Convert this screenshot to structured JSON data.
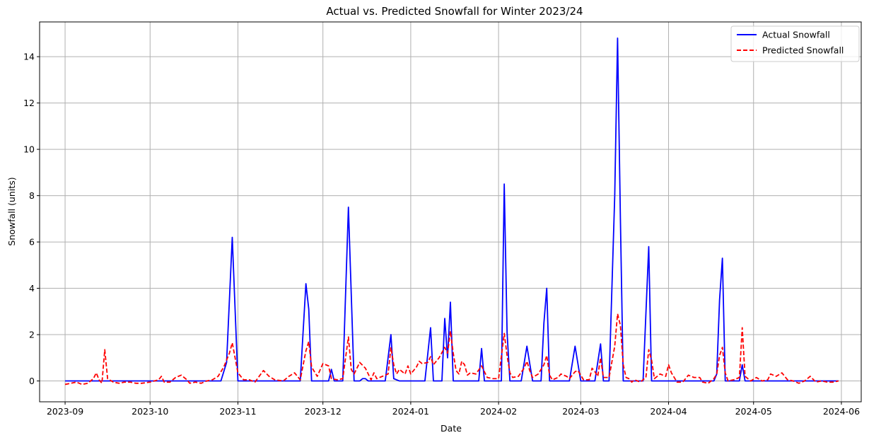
{
  "chart_data": {
    "type": "line",
    "title": "Actual vs. Predicted Snowfall for Winter 2023/24",
    "xlabel": "Date",
    "ylabel": "Snowfall (units)",
    "xlim": [
      "2023-08-23",
      "2024-06-08"
    ],
    "ylim": [
      -0.9,
      15.5
    ],
    "grid": true,
    "legend_position": "top-right",
    "x_ticks": [
      "2023-09",
      "2023-10",
      "2023-11",
      "2023-12",
      "2024-01",
      "2024-02",
      "2024-03",
      "2024-04",
      "2024-05",
      "2024-06"
    ],
    "y_ticks": [
      0,
      2,
      4,
      6,
      8,
      10,
      12,
      14
    ],
    "series": [
      {
        "name": "Actual Snowfall",
        "color": "#0000ff",
        "style": "solid",
        "points": [
          [
            "2023-09-01",
            0
          ],
          [
            "2023-10-26",
            0
          ],
          [
            "2023-10-28",
            0.8
          ],
          [
            "2023-10-30",
            6.2
          ],
          [
            "2023-11-01",
            0
          ],
          [
            "2023-11-23",
            0
          ],
          [
            "2023-11-25",
            4.2
          ],
          [
            "2023-11-26",
            3.1
          ],
          [
            "2023-11-27",
            0
          ],
          [
            "2023-12-03",
            0
          ],
          [
            "2023-12-04",
            0.5
          ],
          [
            "2023-12-05",
            0
          ],
          [
            "2023-12-08",
            0
          ],
          [
            "2023-12-10",
            7.5
          ],
          [
            "2023-12-12",
            0
          ],
          [
            "2023-12-14",
            0
          ],
          [
            "2023-12-15",
            0.1
          ],
          [
            "2023-12-16",
            0.1
          ],
          [
            "2023-12-17",
            0
          ],
          [
            "2023-12-23",
            0
          ],
          [
            "2023-12-25",
            2.0
          ],
          [
            "2023-12-26",
            0.1
          ],
          [
            "2023-12-28",
            0
          ],
          [
            "2024-01-06",
            0
          ],
          [
            "2024-01-08",
            2.3
          ],
          [
            "2024-01-09",
            0
          ],
          [
            "2024-01-12",
            0
          ],
          [
            "2024-01-13",
            2.7
          ],
          [
            "2024-01-14",
            1.0
          ],
          [
            "2024-01-15",
            3.4
          ],
          [
            "2024-01-16",
            0
          ],
          [
            "2024-01-25",
            0
          ],
          [
            "2024-01-26",
            1.4
          ],
          [
            "2024-01-27",
            0
          ],
          [
            "2024-02-02",
            0
          ],
          [
            "2024-02-03",
            8.5
          ],
          [
            "2024-02-04",
            2.1
          ],
          [
            "2024-02-05",
            0
          ],
          [
            "2024-02-09",
            0
          ],
          [
            "2024-02-11",
            1.5
          ],
          [
            "2024-02-13",
            0
          ],
          [
            "2024-02-16",
            0
          ],
          [
            "2024-02-17",
            2.5
          ],
          [
            "2024-02-18",
            4.0
          ],
          [
            "2024-02-19",
            0
          ],
          [
            "2024-02-26",
            0
          ],
          [
            "2024-02-28",
            1.5
          ],
          [
            "2024-03-01",
            0
          ],
          [
            "2024-03-06",
            0
          ],
          [
            "2024-03-08",
            1.6
          ],
          [
            "2024-03-09",
            0
          ],
          [
            "2024-03-11",
            0
          ],
          [
            "2024-03-13",
            8.0
          ],
          [
            "2024-03-14",
            14.8
          ],
          [
            "2024-03-15",
            7.0
          ],
          [
            "2024-03-16",
            0
          ],
          [
            "2024-03-23",
            0
          ],
          [
            "2024-03-25",
            5.8
          ],
          [
            "2024-03-26",
            0
          ],
          [
            "2024-04-17",
            0
          ],
          [
            "2024-04-18",
            0.3
          ],
          [
            "2024-04-19",
            3.5
          ],
          [
            "2024-04-20",
            5.3
          ],
          [
            "2024-04-21",
            0
          ],
          [
            "2024-04-26",
            0
          ],
          [
            "2024-04-27",
            0.7
          ],
          [
            "2024-04-28",
            0
          ],
          [
            "2024-05-31",
            0
          ]
        ]
      },
      {
        "name": "Predicted Snowfall",
        "color": "#ff0000",
        "style": "dashed",
        "points": [
          [
            "2023-09-01",
            -0.15
          ],
          [
            "2023-09-03",
            -0.1
          ],
          [
            "2023-09-05",
            -0.05
          ],
          [
            "2023-09-07",
            -0.15
          ],
          [
            "2023-09-09",
            -0.1
          ],
          [
            "2023-09-11",
            0.1
          ],
          [
            "2023-09-12",
            0.35
          ],
          [
            "2023-09-13",
            0.05
          ],
          [
            "2023-09-14",
            -0.1
          ],
          [
            "2023-09-15",
            1.35
          ],
          [
            "2023-09-16",
            0.1
          ],
          [
            "2023-09-18",
            -0.05
          ],
          [
            "2023-09-20",
            -0.1
          ],
          [
            "2023-09-22",
            -0.05
          ],
          [
            "2023-09-24",
            -0.05
          ],
          [
            "2023-09-26",
            -0.1
          ],
          [
            "2023-09-28",
            -0.1
          ],
          [
            "2023-10-01",
            -0.05
          ],
          [
            "2023-10-04",
            0.05
          ],
          [
            "2023-10-05",
            0.2
          ],
          [
            "2023-10-06",
            -0.05
          ],
          [
            "2023-10-08",
            -0.05
          ],
          [
            "2023-10-10",
            0.15
          ],
          [
            "2023-10-12",
            0.25
          ],
          [
            "2023-10-14",
            0.05
          ],
          [
            "2023-10-15",
            -0.1
          ],
          [
            "2023-10-17",
            -0.05
          ],
          [
            "2023-10-19",
            -0.1
          ],
          [
            "2023-10-21",
            0.0
          ],
          [
            "2023-10-23",
            0.05
          ],
          [
            "2023-10-25",
            0.2
          ],
          [
            "2023-10-27",
            0.6
          ],
          [
            "2023-10-29",
            1.2
          ],
          [
            "2023-10-30",
            1.65
          ],
          [
            "2023-10-31",
            1.0
          ],
          [
            "2023-11-01",
            0.35
          ],
          [
            "2023-11-03",
            0.05
          ],
          [
            "2023-11-05",
            0.05
          ],
          [
            "2023-11-07",
            -0.05
          ],
          [
            "2023-11-10",
            0.45
          ],
          [
            "2023-11-12",
            0.2
          ],
          [
            "2023-11-14",
            0.05
          ],
          [
            "2023-11-17",
            0.0
          ],
          [
            "2023-11-19",
            0.2
          ],
          [
            "2023-11-21",
            0.35
          ],
          [
            "2023-11-23",
            0.05
          ],
          [
            "2023-11-25",
            1.3
          ],
          [
            "2023-11-26",
            1.7
          ],
          [
            "2023-11-27",
            0.6
          ],
          [
            "2023-11-29",
            0.2
          ],
          [
            "2023-12-01",
            0.75
          ],
          [
            "2023-12-03",
            0.65
          ],
          [
            "2023-12-04",
            0.1
          ],
          [
            "2023-12-06",
            0.05
          ],
          [
            "2023-12-08",
            0.1
          ],
          [
            "2023-12-10",
            1.9
          ],
          [
            "2023-12-11",
            0.5
          ],
          [
            "2023-12-12",
            0.3
          ],
          [
            "2023-12-14",
            0.8
          ],
          [
            "2023-12-16",
            0.55
          ],
          [
            "2023-12-18",
            0.05
          ],
          [
            "2023-12-19",
            0.35
          ],
          [
            "2023-12-20",
            0.1
          ],
          [
            "2023-12-22",
            0.2
          ],
          [
            "2023-12-24",
            0.3
          ],
          [
            "2023-12-25",
            1.45
          ],
          [
            "2023-12-26",
            0.7
          ],
          [
            "2023-12-27",
            0.3
          ],
          [
            "2023-12-28",
            0.5
          ],
          [
            "2023-12-30",
            0.3
          ],
          [
            "2023-12-31",
            0.65
          ],
          [
            "2024-01-01",
            0.3
          ],
          [
            "2024-01-03",
            0.6
          ],
          [
            "2024-01-04",
            0.85
          ],
          [
            "2024-01-05",
            0.75
          ],
          [
            "2024-01-07",
            0.8
          ],
          [
            "2024-01-08",
            1.05
          ],
          [
            "2024-01-09",
            0.7
          ],
          [
            "2024-01-11",
            1.0
          ],
          [
            "2024-01-13",
            1.45
          ],
          [
            "2024-01-14",
            1.2
          ],
          [
            "2024-01-15",
            2.15
          ],
          [
            "2024-01-16",
            1.2
          ],
          [
            "2024-01-17",
            0.45
          ],
          [
            "2024-01-18",
            0.3
          ],
          [
            "2024-01-19",
            0.85
          ],
          [
            "2024-01-20",
            0.7
          ],
          [
            "2024-01-21",
            0.25
          ],
          [
            "2024-01-22",
            0.35
          ],
          [
            "2024-01-24",
            0.3
          ],
          [
            "2024-01-26",
            0.65
          ],
          [
            "2024-01-28",
            0.15
          ],
          [
            "2024-01-30",
            0.1
          ],
          [
            "2024-02-01",
            0.1
          ],
          [
            "2024-02-03",
            2.05
          ],
          [
            "2024-02-04",
            1.1
          ],
          [
            "2024-02-05",
            0.35
          ],
          [
            "2024-02-06",
            0.15
          ],
          [
            "2024-02-08",
            0.2
          ],
          [
            "2024-02-10",
            0.55
          ],
          [
            "2024-02-11",
            0.85
          ],
          [
            "2024-02-12",
            0.45
          ],
          [
            "2024-02-13",
            0.15
          ],
          [
            "2024-02-15",
            0.3
          ],
          [
            "2024-02-17",
            0.7
          ],
          [
            "2024-02-18",
            1.1
          ],
          [
            "2024-02-19",
            0.25
          ],
          [
            "2024-02-20",
            0.05
          ],
          [
            "2024-02-22",
            0.15
          ],
          [
            "2024-02-23",
            0.3
          ],
          [
            "2024-02-25",
            0.2
          ],
          [
            "2024-02-26",
            0.1
          ],
          [
            "2024-02-28",
            0.4
          ],
          [
            "2024-02-29",
            0.45
          ],
          [
            "2024-03-02",
            0.05
          ],
          [
            "2024-03-04",
            0.05
          ],
          [
            "2024-03-05",
            0.55
          ],
          [
            "2024-03-06",
            0.4
          ],
          [
            "2024-03-07",
            0.2
          ],
          [
            "2024-03-08",
            1.0
          ],
          [
            "2024-03-09",
            0.15
          ],
          [
            "2024-03-11",
            0.15
          ],
          [
            "2024-03-13",
            1.5
          ],
          [
            "2024-03-14",
            2.9
          ],
          [
            "2024-03-15",
            2.4
          ],
          [
            "2024-03-16",
            0.7
          ],
          [
            "2024-03-17",
            0.15
          ],
          [
            "2024-03-18",
            0.1
          ],
          [
            "2024-03-19",
            -0.05
          ],
          [
            "2024-03-20",
            0.05
          ],
          [
            "2024-03-22",
            -0.05
          ],
          [
            "2024-03-24",
            0.15
          ],
          [
            "2024-03-25",
            1.35
          ],
          [
            "2024-03-26",
            0.9
          ],
          [
            "2024-03-27",
            0.1
          ],
          [
            "2024-03-29",
            0.3
          ],
          [
            "2024-03-31",
            0.2
          ],
          [
            "2024-04-01",
            0.7
          ],
          [
            "2024-04-02",
            0.35
          ],
          [
            "2024-04-04",
            -0.05
          ],
          [
            "2024-04-06",
            -0.05
          ],
          [
            "2024-04-08",
            0.25
          ],
          [
            "2024-04-10",
            0.15
          ],
          [
            "2024-04-12",
            0.15
          ],
          [
            "2024-04-13",
            -0.05
          ],
          [
            "2024-04-15",
            -0.1
          ],
          [
            "2024-04-17",
            0.1
          ],
          [
            "2024-04-18",
            0.3
          ],
          [
            "2024-04-19",
            1.1
          ],
          [
            "2024-04-20",
            1.45
          ],
          [
            "2024-04-21",
            0.35
          ],
          [
            "2024-04-22",
            0.0
          ],
          [
            "2024-04-24",
            0.05
          ],
          [
            "2024-04-26",
            0.15
          ],
          [
            "2024-04-27",
            2.3
          ],
          [
            "2024-04-28",
            0.2
          ],
          [
            "2024-04-30",
            0.0
          ],
          [
            "2024-05-02",
            0.15
          ],
          [
            "2024-05-04",
            0.0
          ],
          [
            "2024-05-06",
            0.05
          ],
          [
            "2024-05-07",
            0.3
          ],
          [
            "2024-05-09",
            0.2
          ],
          [
            "2024-05-11",
            0.35
          ],
          [
            "2024-05-13",
            0.05
          ],
          [
            "2024-05-15",
            0.0
          ],
          [
            "2024-05-17",
            -0.1
          ],
          [
            "2024-05-19",
            0.0
          ],
          [
            "2024-05-21",
            0.2
          ],
          [
            "2024-05-23",
            -0.05
          ],
          [
            "2024-05-25",
            0.0
          ],
          [
            "2024-05-27",
            -0.05
          ],
          [
            "2024-05-29",
            -0.05
          ],
          [
            "2024-05-31",
            0.0
          ]
        ]
      }
    ]
  }
}
